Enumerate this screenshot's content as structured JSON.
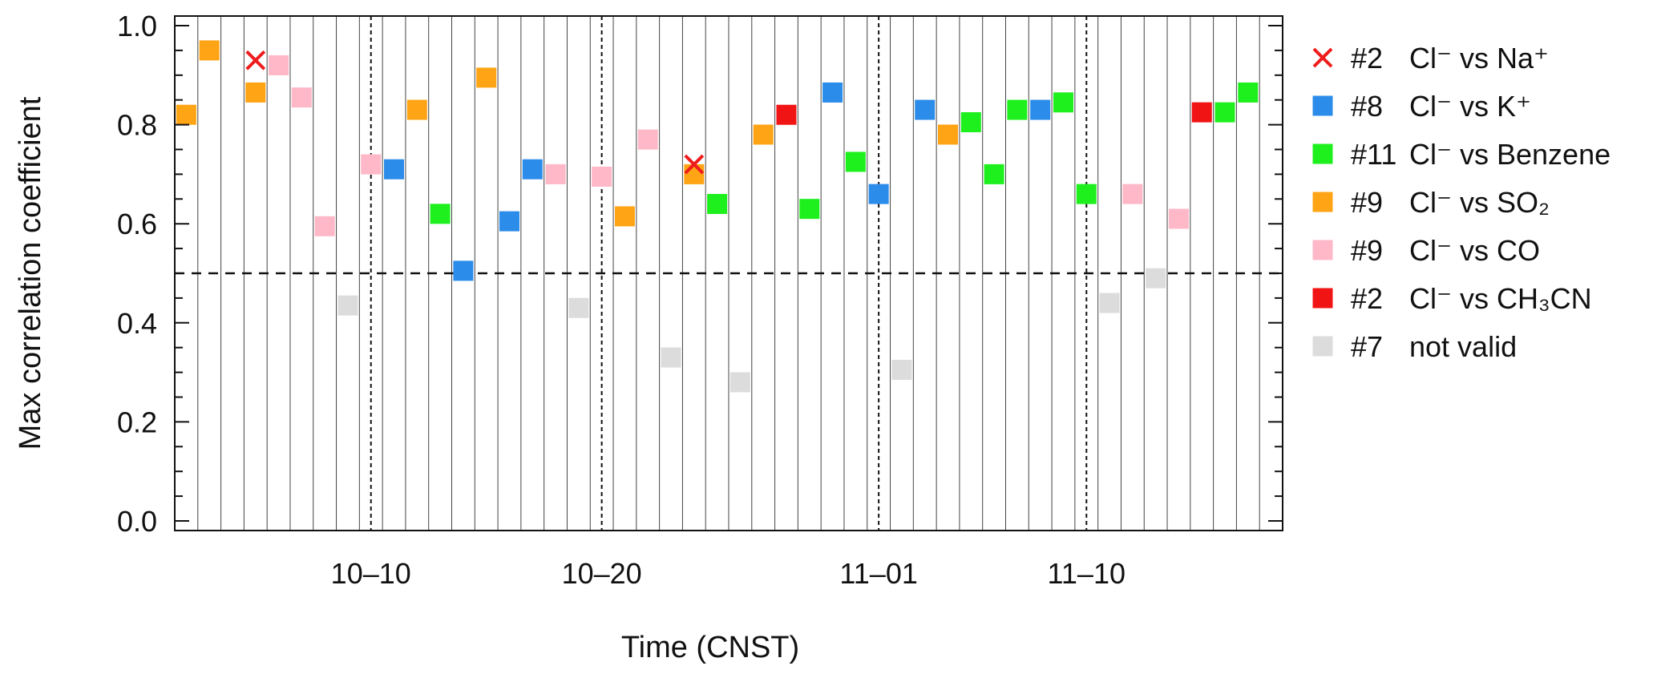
{
  "chart_data": {
    "type": "scatter",
    "xlabel": "Time (CNST)",
    "ylabel": "Max correlation coefficient",
    "ylim": [
      0.0,
      1.0
    ],
    "y_ticks": [
      "0.0",
      "0.2",
      "0.4",
      "0.6",
      "0.8",
      "1.0"
    ],
    "x_tick_labels": [
      {
        "label": "10–10",
        "day": 9
      },
      {
        "label": "10–20",
        "day": 19
      },
      {
        "label": "11–01",
        "day": 31
      },
      {
        "label": "11–10",
        "day": 40
      }
    ],
    "day_count": 48,
    "dashed_day_boundaries": [
      8.5,
      18.5,
      30.5,
      39.5
    ],
    "threshold": 0.5,
    "legend_position": "right",
    "series": [
      {
        "key": "na",
        "count": "#2",
        "label": "Cl⁻ vs Na⁺",
        "marker": "x",
        "color": "#ee1c1c",
        "points": [
          {
            "day": 4,
            "value": 0.93
          },
          {
            "day": 23,
            "value": 0.72
          }
        ]
      },
      {
        "key": "k",
        "count": "#8",
        "label": "Cl⁻ vs K⁺",
        "marker": "square",
        "color": "#2b8cea",
        "points": [
          {
            "day": 10,
            "value": 0.71
          },
          {
            "day": 13,
            "value": 0.505
          },
          {
            "day": 15,
            "value": 0.605
          },
          {
            "day": 16,
            "value": 0.71
          },
          {
            "day": 29,
            "value": 0.865
          },
          {
            "day": 31,
            "value": 0.66
          },
          {
            "day": 33,
            "value": 0.83
          },
          {
            "day": 38,
            "value": 0.83
          }
        ]
      },
      {
        "key": "benzene",
        "count": "#11",
        "label": "Cl⁻ vs Benzene",
        "marker": "square",
        "color": "#1ef01e",
        "points": [
          {
            "day": 12,
            "value": 0.62
          },
          {
            "day": 24,
            "value": 0.64
          },
          {
            "day": 28,
            "value": 0.63
          },
          {
            "day": 30,
            "value": 0.725
          },
          {
            "day": 35,
            "value": 0.805
          },
          {
            "day": 36,
            "value": 0.7
          },
          {
            "day": 37,
            "value": 0.83
          },
          {
            "day": 39,
            "value": 0.845
          },
          {
            "day": 40,
            "value": 0.66
          },
          {
            "day": 46,
            "value": 0.825
          },
          {
            "day": 47,
            "value": 0.865
          }
        ]
      },
      {
        "key": "so2",
        "count": "#9",
        "label": "Cl⁻ vs SO₂",
        "marker": "square",
        "color": "#ffa414",
        "points": [
          {
            "day": 1,
            "value": 0.82
          },
          {
            "day": 2,
            "value": 0.95
          },
          {
            "day": 4,
            "value": 0.865
          },
          {
            "day": 11,
            "value": 0.83
          },
          {
            "day": 14,
            "value": 0.895
          },
          {
            "day": 20,
            "value": 0.615
          },
          {
            "day": 23,
            "value": 0.7
          },
          {
            "day": 26,
            "value": 0.78
          },
          {
            "day": 34,
            "value": 0.78
          }
        ]
      },
      {
        "key": "co",
        "count": "#9",
        "label": "Cl⁻ vs CO",
        "marker": "square",
        "color": "#ffb8c8",
        "points": [
          {
            "day": 5,
            "value": 0.92
          },
          {
            "day": 6,
            "value": 0.855
          },
          {
            "day": 7,
            "value": 0.595
          },
          {
            "day": 9,
            "value": 0.72
          },
          {
            "day": 17,
            "value": 0.7
          },
          {
            "day": 19,
            "value": 0.695
          },
          {
            "day": 21,
            "value": 0.77
          },
          {
            "day": 42,
            "value": 0.66
          },
          {
            "day": 44,
            "value": 0.61
          }
        ]
      },
      {
        "key": "ch3cn",
        "count": "#2",
        "label": "Cl⁻ vs CH₃CN",
        "marker": "square",
        "color": "#f11414",
        "points": [
          {
            "day": 27,
            "value": 0.82
          },
          {
            "day": 45,
            "value": 0.825
          }
        ]
      },
      {
        "key": "invalid",
        "count": "#7",
        "label": "not valid",
        "marker": "square",
        "color": "#dcdcdc",
        "points": [
          {
            "day": 8,
            "value": 0.435
          },
          {
            "day": 18,
            "value": 0.43
          },
          {
            "day": 22,
            "value": 0.33
          },
          {
            "day": 25,
            "value": 0.28
          },
          {
            "day": 32,
            "value": 0.305
          },
          {
            "day": 41,
            "value": 0.44
          },
          {
            "day": 43,
            "value": 0.49
          }
        ]
      }
    ]
  }
}
